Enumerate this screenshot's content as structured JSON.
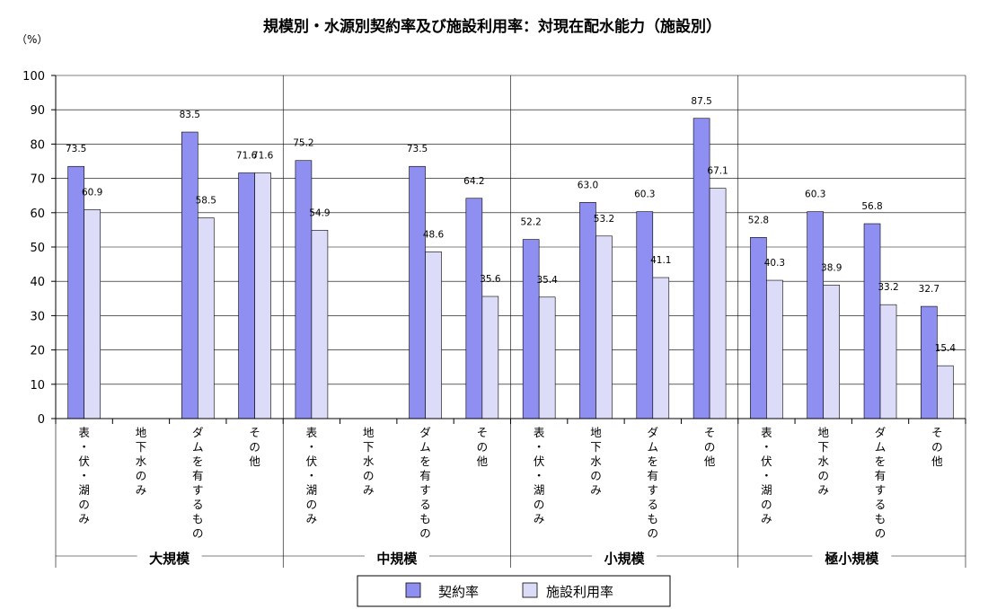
{
  "colors": {
    "series1": "#8f8ff2",
    "series2": "#dcdcf8",
    "stroke": "#000000",
    "grid": "#000000"
  },
  "chart_data": {
    "type": "bar",
    "title": "規模別・水源別契約率及び施設利用率：対現在配水能力（施設別）",
    "ylabel": "（%）",
    "ylim": [
      0,
      100
    ],
    "yticks": [
      0,
      10,
      20,
      30,
      40,
      50,
      60,
      70,
      80,
      90,
      100
    ],
    "groups": [
      {
        "name": "大規模",
        "categories": [
          "表・伏・湖のみ",
          "地下水のみ",
          "ダムを有するもの",
          "その他"
        ]
      },
      {
        "name": "中規模",
        "categories": [
          "表・伏・湖のみ",
          "地下水のみ",
          "ダムを有するもの",
          "その他"
        ]
      },
      {
        "name": "小規模",
        "categories": [
          "表・伏・湖のみ",
          "地下水のみ",
          "ダムを有するもの",
          "その他"
        ]
      },
      {
        "name": "極小規模",
        "categories": [
          "表・伏・湖のみ",
          "地下水のみ",
          "ダムを有するもの",
          "その他"
        ]
      }
    ],
    "series": [
      {
        "name": "契約率",
        "values": [
          73.5,
          null,
          83.5,
          71.6,
          75.2,
          null,
          73.5,
          64.2,
          52.2,
          63.0,
          60.3,
          87.5,
          52.8,
          60.3,
          56.8,
          32.7
        ]
      },
      {
        "name": "施設利用率",
        "values": [
          60.9,
          null,
          58.5,
          71.6,
          54.9,
          null,
          48.6,
          35.6,
          35.4,
          53.2,
          41.1,
          67.1,
          40.3,
          38.9,
          33.2,
          15.4
        ]
      }
    ],
    "legend": "bottom-center"
  }
}
